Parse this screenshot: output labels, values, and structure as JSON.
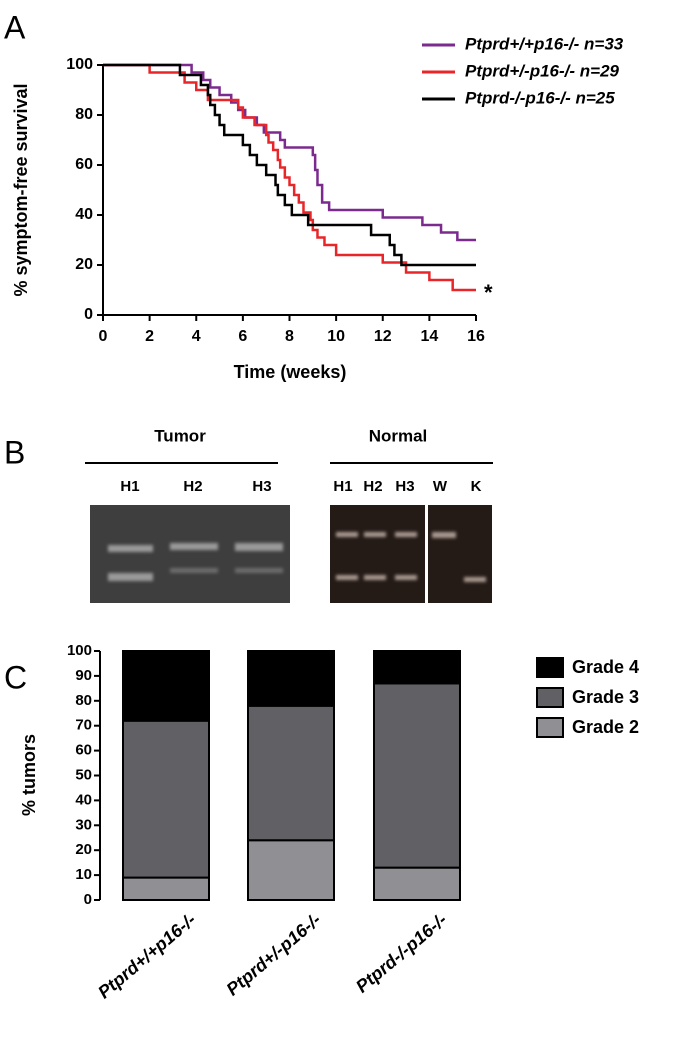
{
  "panel_labels": [
    "A",
    "B",
    "C"
  ],
  "chart_data": [
    {
      "type": "line",
      "step": true,
      "xlabel": "Time (weeks)",
      "ylabel": "% symptom-free survival",
      "xlim": [
        0,
        16
      ],
      "xticks": [
        0,
        2,
        4,
        6,
        8,
        10,
        12,
        14,
        16
      ],
      "ylim": [
        0,
        100
      ],
      "yticks": [
        0,
        20,
        40,
        60,
        80,
        100
      ],
      "annotation": "*",
      "series": [
        {
          "name": "Ptprd+/+p16-/- n=33",
          "color": "#7b2a8e",
          "x": [
            0,
            3.8,
            4.3,
            4.6,
            5,
            5.5,
            5.8,
            6.1,
            6.6,
            6.9,
            7.6,
            7.8,
            9,
            9.1,
            9.2,
            9.4,
            9.7,
            12,
            13.7,
            14.5,
            15.2,
            16
          ],
          "values": [
            100,
            97,
            94,
            91,
            88,
            85,
            82,
            79,
            76,
            73,
            70,
            67,
            64,
            58,
            52,
            45,
            42,
            39,
            36,
            33,
            30,
            30
          ]
        },
        {
          "name": "Ptprd+/-p16-/- n=29",
          "color": "#e8262a",
          "x": [
            0,
            2,
            3.5,
            4,
            4.5,
            5.8,
            6,
            6.5,
            7,
            7.1,
            7.3,
            7.5,
            7.6,
            7.8,
            8,
            8.2,
            8.4,
            8.6,
            8.9,
            9,
            9.2,
            9.5,
            10,
            12,
            13,
            14,
            15,
            16
          ],
          "values": [
            100,
            97,
            93,
            90,
            86,
            83,
            79,
            76,
            72,
            69,
            66,
            62,
            59,
            55,
            52,
            48,
            45,
            41,
            38,
            34,
            31,
            28,
            24,
            21,
            17,
            14,
            10,
            10
          ]
        },
        {
          "name": "Ptprd-/-p16-/- n=25",
          "color": "#000000",
          "x": [
            0,
            3.3,
            4.2,
            4.5,
            4.6,
            4.8,
            5,
            5.2,
            6,
            6.3,
            6.6,
            7,
            7.4,
            7.5,
            7.8,
            8.1,
            8.8,
            11.5,
            12.3,
            12.5,
            12.8,
            16
          ],
          "values": [
            100,
            96,
            92,
            88,
            84,
            80,
            76,
            72,
            68,
            64,
            60,
            56,
            52,
            48,
            44,
            40,
            36,
            32,
            28,
            24,
            20,
            20
          ]
        }
      ]
    },
    {
      "type": "bar",
      "stacked": true,
      "ylabel": "% tumors",
      "categories": [
        "Ptprd+/+p16-/-",
        "Ptprd+/-p16-/-",
        "Ptprd-/-p16-/-"
      ],
      "ylim": [
        0,
        100
      ],
      "yticks": [
        0,
        10,
        20,
        30,
        40,
        50,
        60,
        70,
        80,
        90,
        100
      ],
      "series": [
        {
          "name": "Grade 2",
          "color": "#8f8f94",
          "values": [
            9,
            24,
            13
          ]
        },
        {
          "name": "Grade 3",
          "color": "#606065",
          "values": [
            63,
            54,
            74
          ]
        },
        {
          "name": "Grade 4",
          "color": "#000000",
          "values": [
            28,
            22,
            13
          ]
        }
      ]
    }
  ],
  "gel": {
    "groups": [
      {
        "label": "Tumor",
        "lanes": [
          "H1",
          "H2",
          "H3"
        ]
      },
      {
        "label": "Normal",
        "lanes": [
          "H1",
          "H2",
          "H3",
          "W",
          "K"
        ]
      }
    ]
  }
}
